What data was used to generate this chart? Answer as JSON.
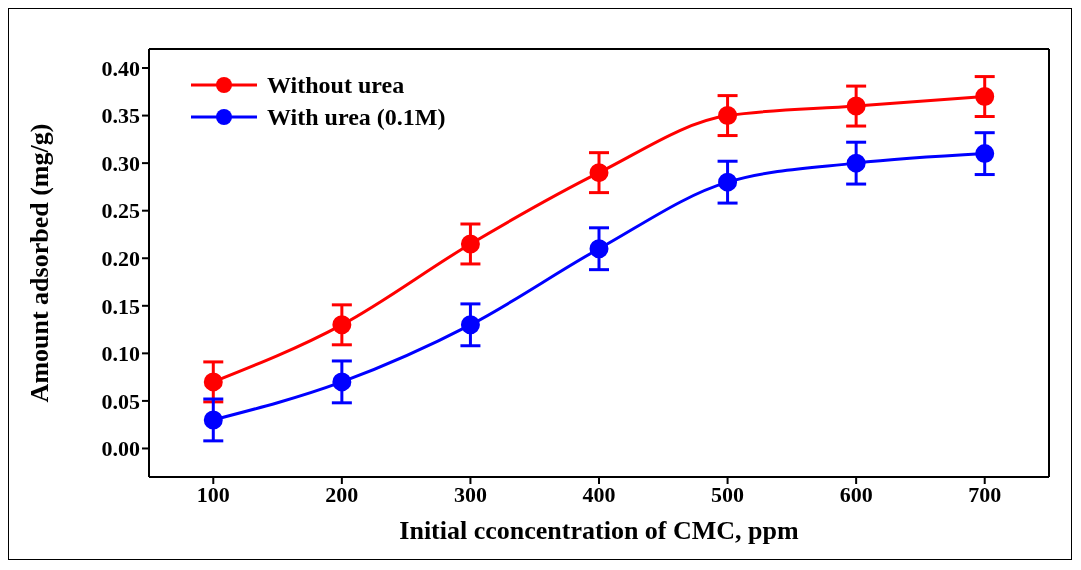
{
  "chart_data": {
    "type": "line",
    "xlabel": "Initial cconcentration of CMC, ppm",
    "ylabel": "Amount adsorbed (mg/g)",
    "x": [
      100,
      200,
      300,
      400,
      500,
      600,
      700
    ],
    "series": [
      {
        "name": "Without urea",
        "color": "#ff0000",
        "values": [
          0.07,
          0.13,
          0.215,
          0.29,
          0.35,
          0.36,
          0.37
        ],
        "errors": [
          0.021,
          0.021,
          0.021,
          0.021,
          0.021,
          0.021,
          0.021
        ]
      },
      {
        "name": "With urea (0.1M)",
        "color": "#0000ff",
        "values": [
          0.03,
          0.07,
          0.13,
          0.21,
          0.28,
          0.3,
          0.31
        ],
        "errors": [
          0.022,
          0.022,
          0.022,
          0.022,
          0.022,
          0.022,
          0.022
        ]
      }
    ],
    "xlim": [
      50,
      750
    ],
    "xticks": [
      100,
      200,
      300,
      400,
      500,
      600,
      700
    ],
    "ylim": [
      -0.03,
      0.42
    ],
    "yticks": [
      {
        "value": 0,
        "label": "0.00"
      },
      {
        "value": 0.05,
        "label": "0.05"
      },
      {
        "value": 0.1,
        "label": "0.10"
      },
      {
        "value": 0.15,
        "label": "0.15"
      },
      {
        "value": 0.2,
        "label": "0.20"
      },
      {
        "value": 0.25,
        "label": "0.25"
      },
      {
        "value": 0.3,
        "label": "0.30"
      },
      {
        "value": 0.35,
        "label": "0.35"
      },
      {
        "value": 0.4,
        "label": "0.40"
      }
    ],
    "grid": false,
    "legend": "top left",
    "marker": "circle",
    "line_style": "solid"
  }
}
